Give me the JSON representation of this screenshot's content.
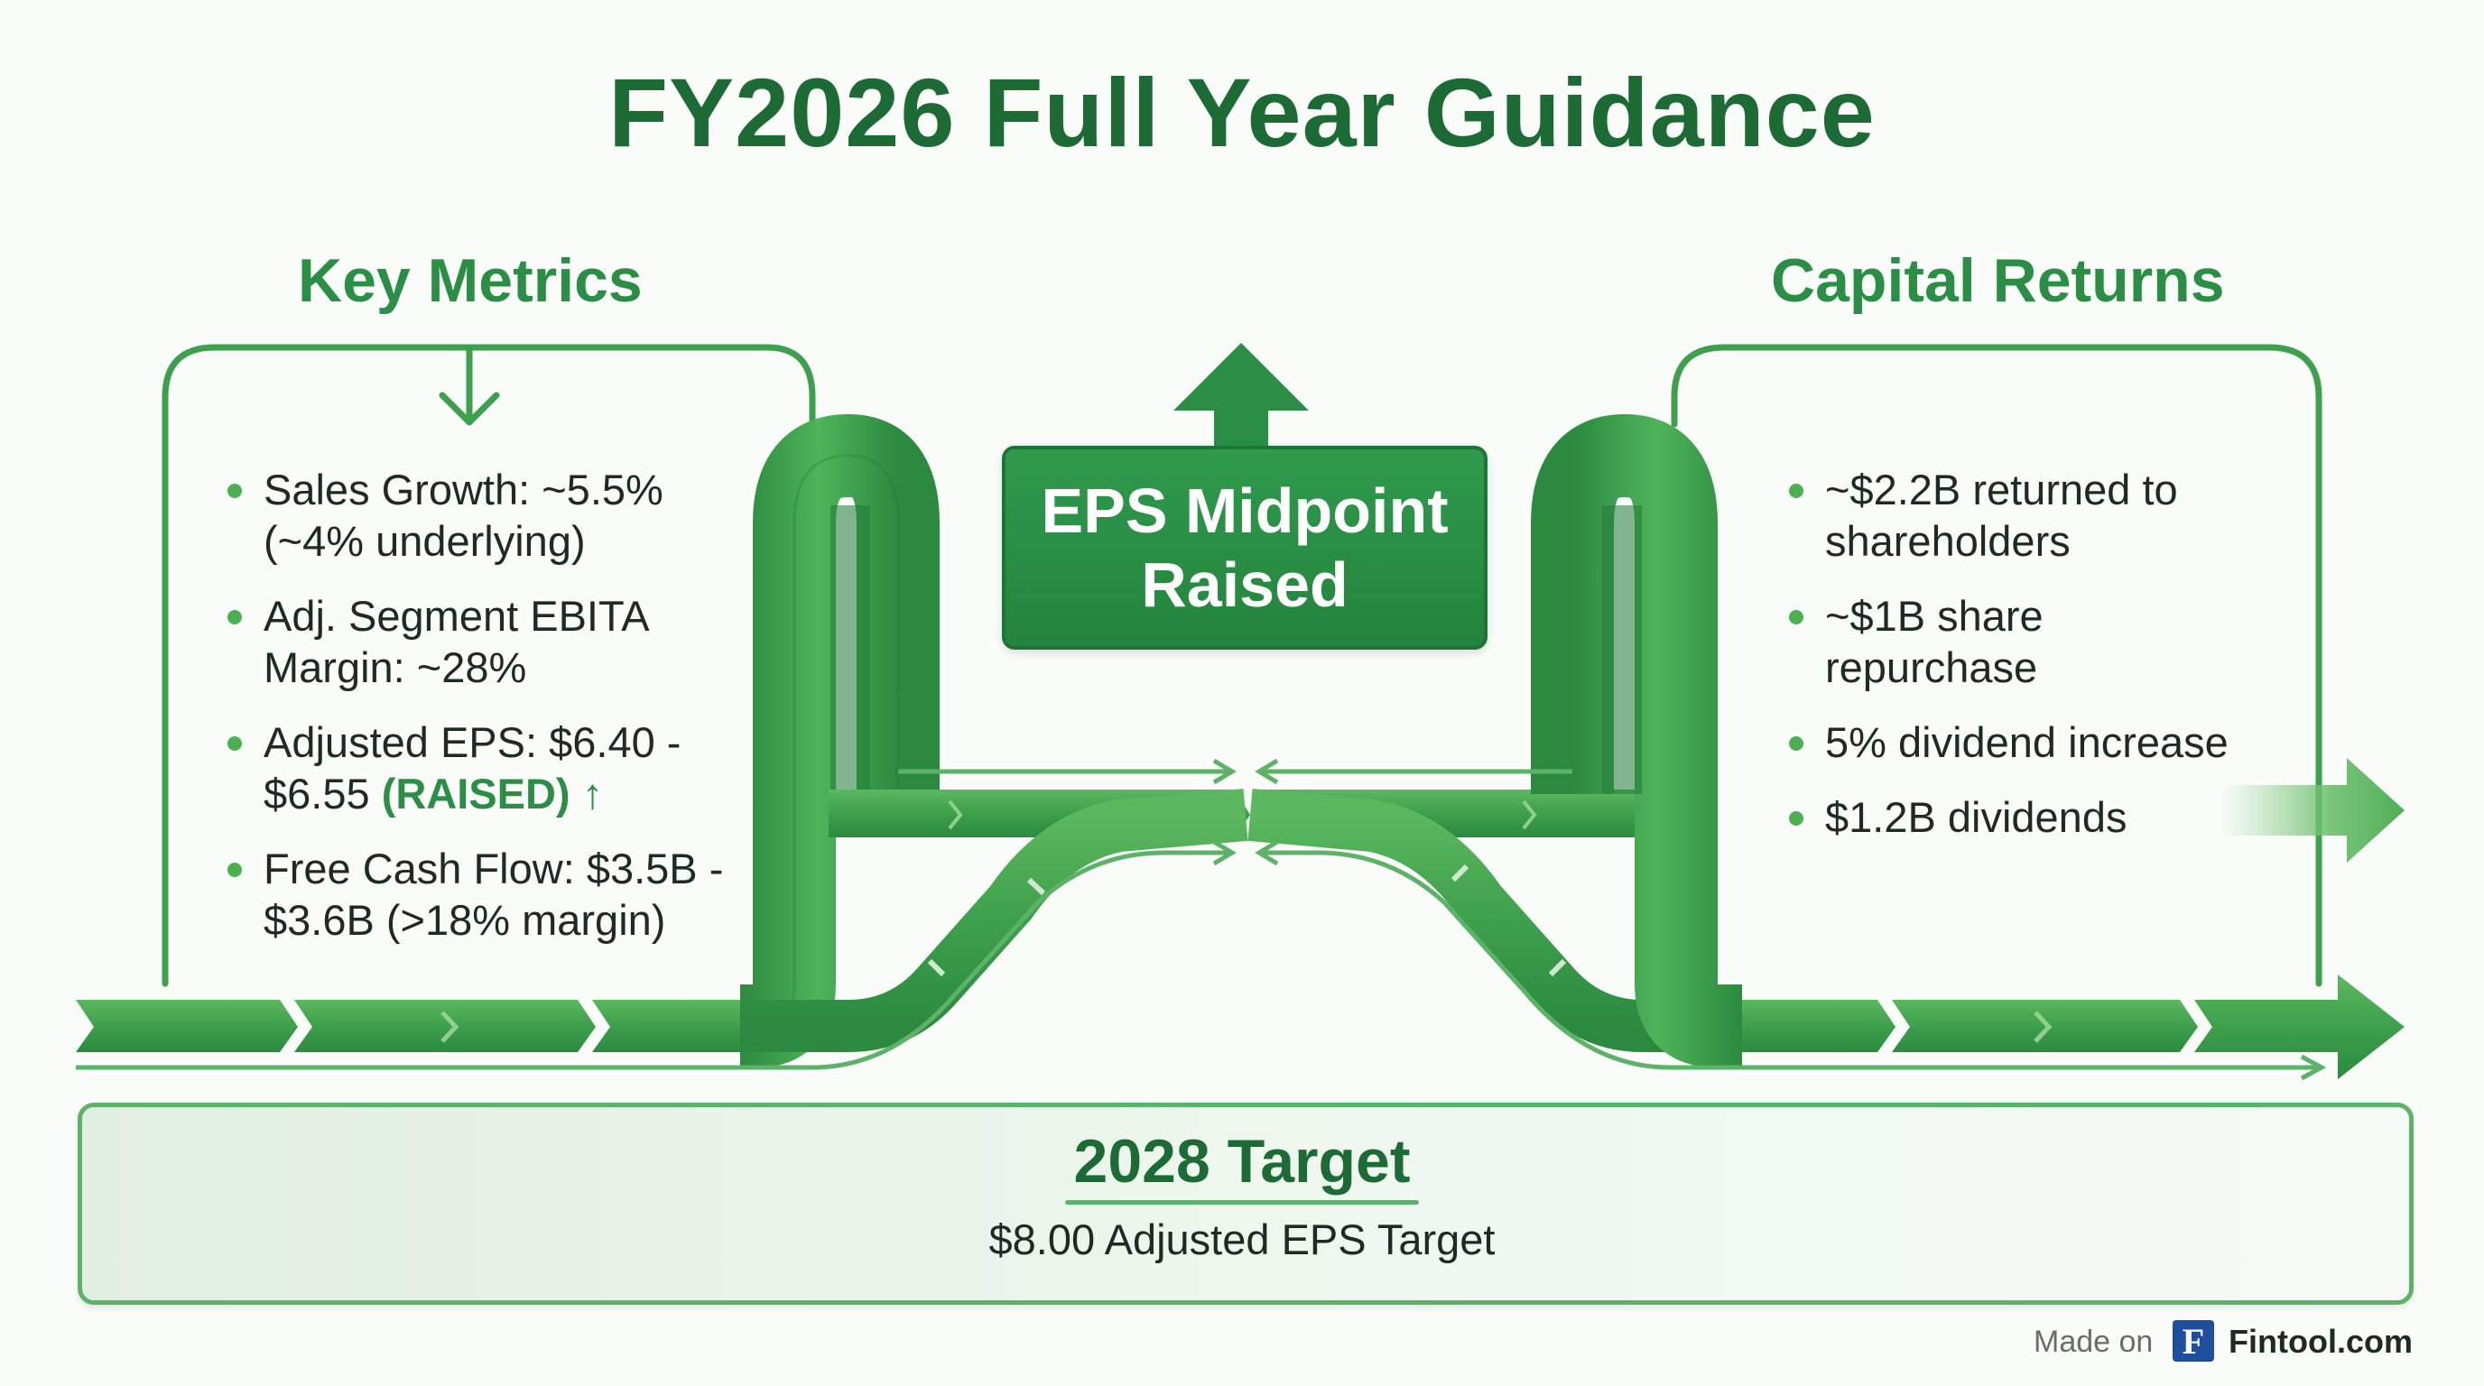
{
  "title": "FY2026 Full Year Guidance",
  "key_metrics": {
    "heading": "Key Metrics",
    "items": [
      {
        "text": "Sales Growth: ~5.5% (~4% underlying)"
      },
      {
        "text": "Adj. Segment EBITA Margin: ~28%"
      },
      {
        "text": "Adjusted EPS: $6.40 - $6.55 ",
        "highlight": "(RAISED)",
        "arrow": "↑"
      },
      {
        "text": "Free Cash Flow: $3.5B - $3.6B (>18% margin)"
      }
    ]
  },
  "center": {
    "label": "EPS Midpoint Raised",
    "icon": "up-arrow-icon"
  },
  "capital_returns": {
    "heading": "Capital Returns",
    "items": [
      {
        "text": "~$2.2B returned to shareholders"
      },
      {
        "text": "~$1B share repurchase"
      },
      {
        "text": "5% dividend increase"
      },
      {
        "text": "$1.2B dividends"
      }
    ]
  },
  "target": {
    "title": "2028 Target",
    "subtitle": "$8.00 Adjusted EPS Target"
  },
  "footer": {
    "made_on": "Made on",
    "logo_letter": "F",
    "brand": "Fintool.com"
  },
  "colors": {
    "dark_green": "#1c6b35",
    "green": "#2a8f45",
    "light_green": "#5cb368",
    "pale_green": "#8fcf8f"
  }
}
